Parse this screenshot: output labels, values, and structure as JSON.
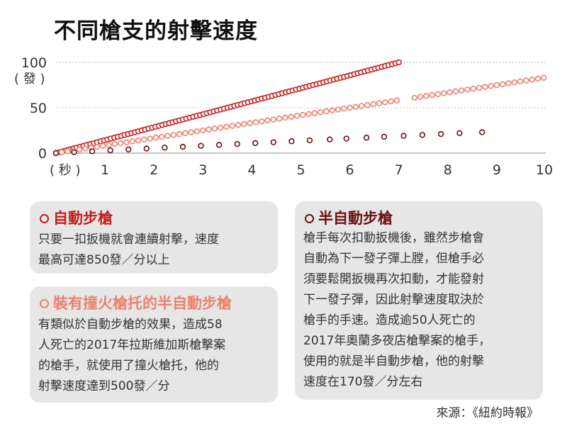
{
  "title": "不同槍支的射擊速度",
  "chart_data": {
    "type": "scatter",
    "xlim": [
      0,
      10
    ],
    "ylim": [
      0,
      100
    ],
    "x_ticks": [
      "1",
      "2",
      "3",
      "4",
      "5",
      "6",
      "7",
      "8",
      "9",
      "10"
    ],
    "x_unit": "（秒）",
    "y_ticks": [
      "0",
      "50",
      "100"
    ],
    "y_unit": "（發）",
    "grid": "horizontal dotted at 50 and 100",
    "series": [
      {
        "color": "#c41e1e",
        "x": [
          0.0,
          0.07,
          0.14,
          0.21,
          0.28,
          0.35,
          0.42,
          0.49,
          0.56,
          0.63,
          0.7,
          0.77,
          0.84,
          0.91,
          0.98,
          1.05,
          1.12,
          1.19,
          1.26,
          1.33,
          1.4,
          1.47,
          1.54,
          1.61,
          1.68,
          1.75,
          1.82,
          1.89,
          1.96,
          2.03,
          2.1,
          2.17,
          2.24,
          2.31,
          2.38,
          2.45,
          2.52,
          2.59,
          2.66,
          2.73,
          2.8,
          2.87,
          2.94,
          3.01,
          3.08,
          3.15,
          3.22,
          3.29,
          3.36,
          3.43,
          3.5,
          3.57,
          3.64,
          3.71,
          3.78,
          3.85,
          3.92,
          3.99,
          4.06,
          4.13,
          4.2,
          4.27,
          4.34,
          4.41,
          4.48,
          4.55,
          4.62,
          4.69,
          4.76,
          4.83,
          4.9,
          4.97,
          5.04,
          5.11,
          5.18,
          5.25,
          5.32,
          5.39,
          5.46,
          5.53,
          5.6,
          5.67,
          5.74,
          5.81,
          5.88,
          5.95,
          6.02,
          6.09,
          6.16,
          6.23,
          6.3,
          6.37,
          6.44,
          6.51,
          6.58,
          6.65,
          6.72,
          6.79,
          6.86,
          6.93,
          7.0
        ],
        "y": [
          0,
          1,
          2,
          3,
          4,
          5,
          6,
          7,
          8,
          9,
          10,
          11,
          12,
          13,
          14,
          15,
          16,
          17,
          18,
          19,
          20,
          21,
          22,
          23,
          24,
          25,
          26,
          27,
          28,
          29,
          30,
          31,
          32,
          33,
          34,
          35,
          36,
          37,
          38,
          39,
          40,
          41,
          42,
          43,
          44,
          45,
          46,
          47,
          48,
          49,
          50,
          51,
          52,
          53,
          54,
          55,
          56,
          57,
          58,
          59,
          60,
          61,
          62,
          63,
          64,
          65,
          66,
          67,
          68,
          69,
          70,
          71,
          72,
          73,
          74,
          75,
          76,
          77,
          78,
          79,
          80,
          81,
          82,
          83,
          84,
          85,
          86,
          87,
          88,
          89,
          90,
          91,
          92,
          93,
          94,
          95,
          96,
          97,
          98,
          99,
          100
        ]
      },
      {
        "color": "#e8836f",
        "x": [
          0.0,
          0.12,
          0.24,
          0.36,
          0.48,
          0.6,
          0.72,
          0.84,
          0.96,
          1.08,
          1.2,
          1.32,
          1.44,
          1.56,
          1.68,
          1.8,
          1.92,
          2.04,
          2.16,
          2.28,
          2.4,
          2.52,
          2.64,
          2.76,
          2.88,
          3.0,
          3.12,
          3.24,
          3.36,
          3.48,
          3.6,
          3.72,
          3.84,
          3.96,
          4.08,
          4.2,
          4.32,
          4.44,
          4.56,
          4.68,
          4.8,
          4.92,
          5.04,
          5.16,
          5.28,
          5.4,
          5.52,
          5.64,
          5.76,
          5.88,
          6.0,
          6.12,
          6.24,
          6.36,
          6.48,
          6.6,
          6.72,
          6.84,
          6.96,
          7.32,
          7.44,
          7.56,
          7.68,
          7.8,
          7.92,
          8.04,
          8.16,
          8.28,
          8.4,
          8.52,
          8.64,
          8.76,
          8.88,
          9.0,
          9.12,
          9.24,
          9.36,
          9.48,
          9.6,
          9.72,
          9.84,
          9.96
        ],
        "y": [
          0,
          1,
          2,
          3,
          4,
          5,
          6,
          7,
          8,
          9,
          10,
          11,
          12,
          13,
          14,
          15,
          16,
          17,
          18,
          19,
          20,
          21,
          22,
          23,
          24,
          25,
          26,
          27,
          28,
          29,
          30,
          31,
          32,
          33,
          34,
          35,
          36,
          37,
          38,
          39,
          40,
          41,
          42,
          43,
          44,
          45,
          46,
          47,
          48,
          49,
          50,
          51,
          52,
          53,
          54,
          55,
          56,
          57,
          58,
          61,
          62,
          63,
          64,
          65,
          66,
          67,
          68,
          69,
          70,
          71,
          72,
          73,
          74,
          75,
          76,
          77,
          78,
          79,
          80,
          81,
          82,
          83
        ]
      },
      {
        "color": "#6b1010",
        "x": [
          0.0,
          0.37,
          0.74,
          1.11,
          1.48,
          1.85,
          2.22,
          2.59,
          2.96,
          3.33,
          3.7,
          4.07,
          4.44,
          4.81,
          5.18,
          5.59,
          5.93,
          6.34,
          6.7,
          7.1,
          7.48,
          7.86,
          8.24,
          8.7
        ],
        "y": [
          0,
          1,
          2,
          3,
          4,
          5,
          6,
          7,
          8,
          9,
          10,
          11,
          12,
          13,
          14,
          15,
          16,
          17,
          18,
          19,
          20,
          21,
          22,
          23
        ]
      }
    ]
  },
  "boxes": [
    {
      "title": "自動步槍",
      "color": "#c41e1e",
      "lines": [
        "只要一扣扳機就會連續射擊，速度",
        "最高可達850發／分以上"
      ]
    },
    {
      "title": "裝有撞火槍托的半自動步槍",
      "color": "#e8836f",
      "lines": [
        "有類似於自動步槍的效果，造成58",
        "人死亡的2017年拉斯維加斯槍擊案",
        "的槍手，就使用了撞火槍托，他的",
        "射擊速度達到500發／分"
      ]
    },
    {
      "title": "半自動步槍",
      "color": "#6b1010",
      "lines": [
        "槍手每次扣動扳機後，雖然步槍會",
        "自動為下一發子彈上膛，但槍手必",
        "須要鬆開扳機再次扣動，才能發射",
        "下一發子彈，因此射擊速度取決於",
        "槍手的手速。造成逾50人死亡的",
        "2017年奧蘭多夜店槍擊案的槍手，",
        "使用的就是半自動步槍，他的射擊",
        "速度在170發／分左右"
      ]
    }
  ],
  "source": "來源：《紐約時報》"
}
